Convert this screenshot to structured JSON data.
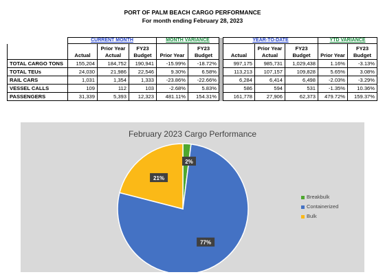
{
  "header": {
    "title": "PORT OF PALM BEACH CARGO PERFORMANCE",
    "subtitle": "For month ending February 28, 2023"
  },
  "table": {
    "groups": {
      "current": "CURRENT MONTH",
      "month_var": "MONTH VARIANCE",
      "ytd": "YEAR-TO-DATE",
      "ytd_var": "YTD VARIANCE"
    },
    "columns": [
      "Actual",
      "Prior Year Actual",
      "FY23 Budget",
      "Prior Year",
      "FY23 Budget",
      "Actual",
      "Prior Year Actual",
      "FY23 Budget",
      "Prior Year",
      "FY23 Budget"
    ],
    "rows": [
      {
        "label": "TOTAL CARGO TONS",
        "values": [
          "155,204",
          "184,752",
          "190,941",
          "-15.99%",
          "-18.72%",
          "997,175",
          "985,731",
          "1,029,438",
          "1.16%",
          "-3.13%"
        ]
      },
      {
        "label": "TOTAL TEUs",
        "values": [
          "24,030",
          "21,986",
          "22,546",
          "9.30%",
          "6.58%",
          "113,213",
          "107,157",
          "109,828",
          "5.65%",
          "3.08%"
        ]
      },
      {
        "label": "RAIL CARS",
        "values": [
          "1,031",
          "1,354",
          "1,333",
          "-23.86%",
          "-22.66%",
          "6,284",
          "6,414",
          "6,498",
          "-2.03%",
          "-3.29%"
        ]
      },
      {
        "label": "VESSEL CALLS",
        "values": [
          "109",
          "112",
          "103",
          "-2.68%",
          "5.83%",
          "586",
          "594",
          "531",
          "-1.35%",
          "10.36%"
        ]
      },
      {
        "label": "PASSENGERS",
        "values": [
          "31,339",
          "5,393",
          "12,323",
          "481.11%",
          "154.31%",
          "161,778",
          "27,906",
          "62,373",
          "479.72%",
          "159.37%"
        ]
      }
    ]
  },
  "chart_data": {
    "type": "pie",
    "title": "February 2023 Cargo Performance",
    "categories": [
      "Breakbulk",
      "Containerized",
      "Bulk"
    ],
    "values": [
      2,
      77,
      21
    ],
    "data_labels": [
      "2%",
      "77%",
      "21%"
    ],
    "colors": [
      "#4ea72e",
      "#4472c4",
      "#fbb917"
    ],
    "legend_position": "right"
  }
}
